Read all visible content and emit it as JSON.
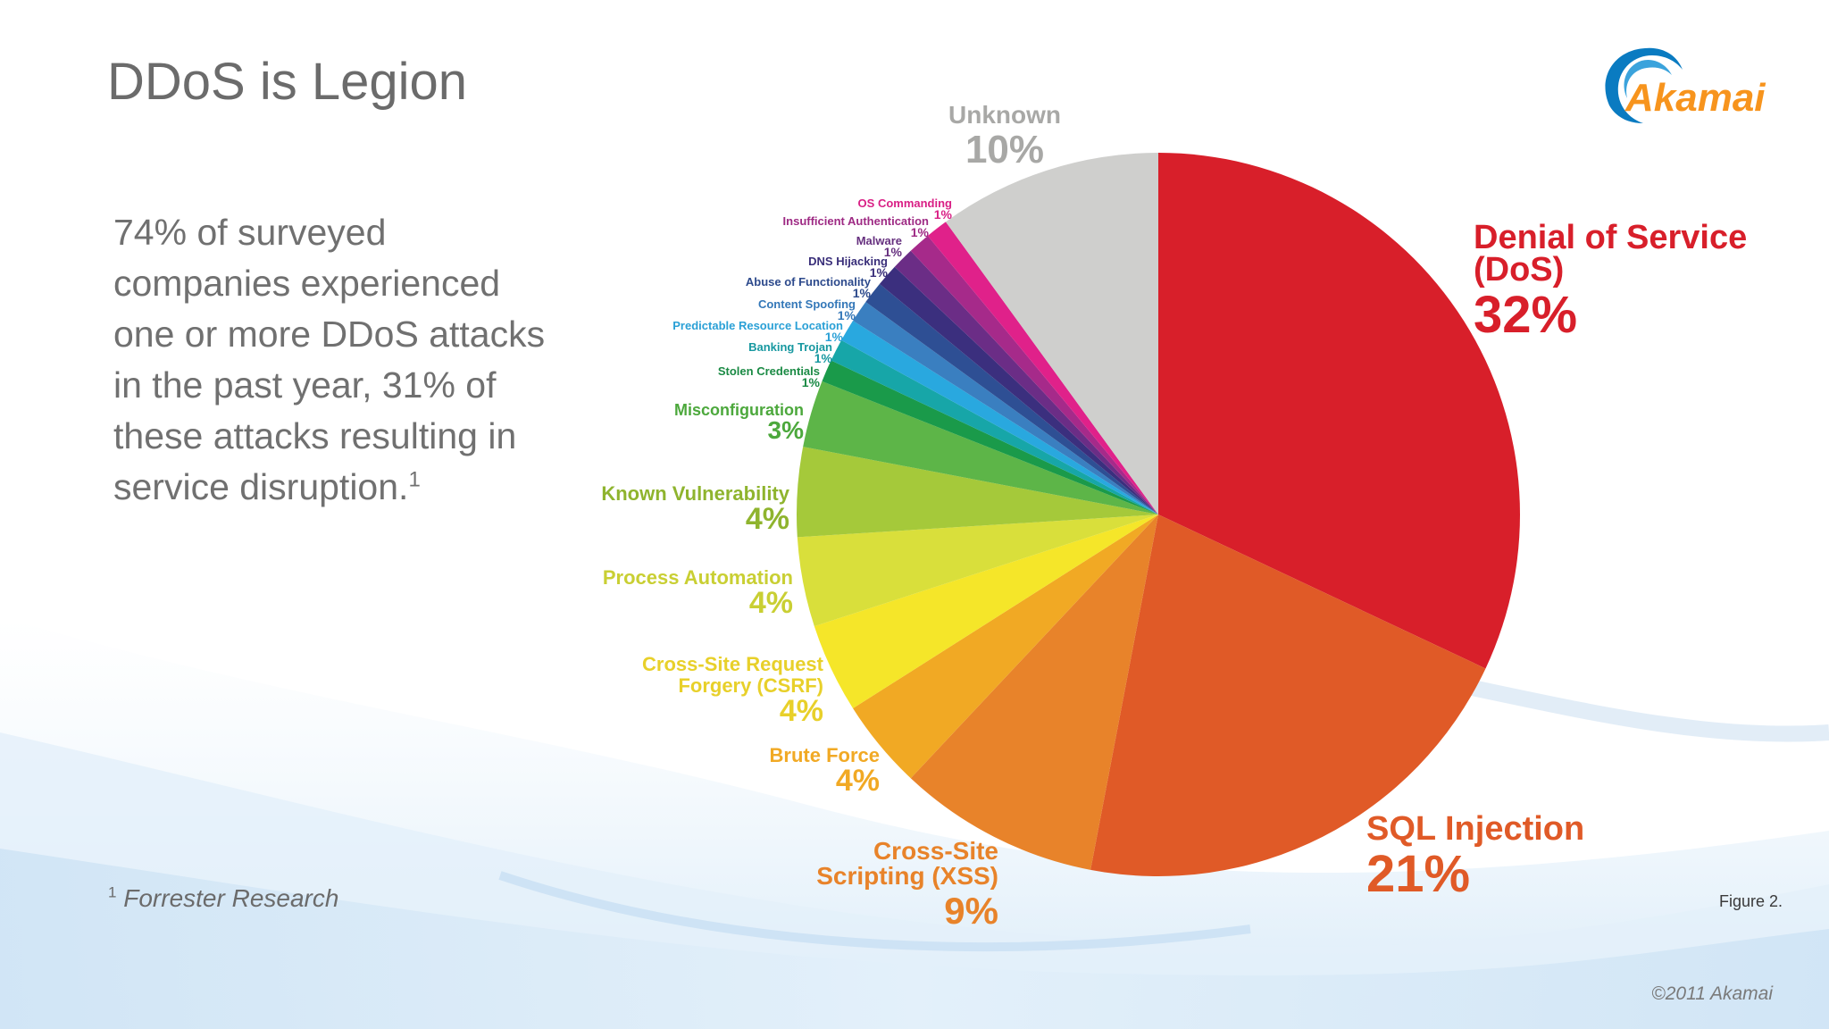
{
  "slide": {
    "title": "DDoS is Legion",
    "body_lines": [
      "74% of surveyed",
      "companies experienced",
      "one or more DDoS attacks",
      "in the past year, 31% of",
      "these attacks resulting in",
      "service disruption."
    ],
    "body_superscript": "1",
    "footnote_marker": "1",
    "footnote_text": "Forrester Research",
    "copyright": "©2011 Akamai",
    "figure_label": "Figure 2."
  },
  "logo": {
    "text": "Akamai",
    "color": "#f7941d",
    "swoosh_color": "#0a7bc1"
  },
  "chart_data": {
    "type": "pie",
    "start_angle_deg": 0,
    "direction": "clockwise",
    "slices": [
      {
        "label_lines": [
          "Denial of Service",
          "(DoS)"
        ],
        "value_label": "32%",
        "value": 32,
        "color": "#d81f2a",
        "label_color": "#d81f2a"
      },
      {
        "label_lines": [
          "SQL Injection"
        ],
        "value_label": "21%",
        "value": 21,
        "color": "#e05a27",
        "label_color": "#e05a27"
      },
      {
        "label_lines": [
          "Cross-Site",
          "Scripting (XSS)"
        ],
        "value_label": "9%",
        "value": 9,
        "color": "#e8832a",
        "label_color": "#e8832a"
      },
      {
        "label_lines": [
          "Brute Force"
        ],
        "value_label": "4%",
        "value": 4,
        "color": "#f1a924",
        "label_color": "#f1a924"
      },
      {
        "label_lines": [
          "Cross-Site Request",
          "Forgery (CSRF)"
        ],
        "value_label": "4%",
        "value": 4,
        "color": "#f5e629",
        "label_color": "#e8d02a"
      },
      {
        "label_lines": [
          "Process Automation"
        ],
        "value_label": "4%",
        "value": 4,
        "color": "#d9df3b",
        "label_color": "#c9cf33"
      },
      {
        "label_lines": [
          "Known Vulnerability"
        ],
        "value_label": "4%",
        "value": 4,
        "color": "#a5c93a",
        "label_color": "#8fb42e"
      },
      {
        "label_lines": [
          "Misconfiguration"
        ],
        "value_label": "3%",
        "value": 3,
        "color": "#5db548",
        "label_color": "#4ca83c"
      },
      {
        "label_lines": [
          "Stolen Credentials"
        ],
        "value_label": "1%",
        "value": 1,
        "color": "#1a9a4a",
        "label_color": "#1a8a44"
      },
      {
        "label_lines": [
          "Banking Trojan"
        ],
        "value_label": "1%",
        "value": 1,
        "color": "#17a6a8",
        "label_color": "#1798a0"
      },
      {
        "label_lines": [
          "Predictable Resource Location"
        ],
        "value_label": "1%",
        "value": 1,
        "color": "#29a8df",
        "label_color": "#2aa0d6"
      },
      {
        "label_lines": [
          "Content Spoofing"
        ],
        "value_label": "1%",
        "value": 1,
        "color": "#3a7fc0",
        "label_color": "#3377b8"
      },
      {
        "label_lines": [
          "Abuse of Functionality"
        ],
        "value_label": "1%",
        "value": 1,
        "color": "#2e4f94",
        "label_color": "#2d4a8c"
      },
      {
        "label_lines": [
          "DNS Hijacking"
        ],
        "value_label": "1%",
        "value": 1,
        "color": "#3b2f7e",
        "label_color": "#3a2f7a"
      },
      {
        "label_lines": [
          "Malware"
        ],
        "value_label": "1%",
        "value": 1,
        "color": "#6b2d86",
        "label_color": "#66307f"
      },
      {
        "label_lines": [
          "Insufficient Authentication"
        ],
        "value_label": "1%",
        "value": 1,
        "color": "#a62a8a",
        "label_color": "#9e2a84"
      },
      {
        "label_lines": [
          "OS Commanding"
        ],
        "value_label": "1%",
        "value": 1,
        "color": "#e0218a",
        "label_color": "#d91f85"
      },
      {
        "label_lines": [
          "Unknown"
        ],
        "value_label": "10%",
        "value": 10,
        "color": "#cfcfcd",
        "label_color": "#a8a8a6"
      }
    ]
  }
}
